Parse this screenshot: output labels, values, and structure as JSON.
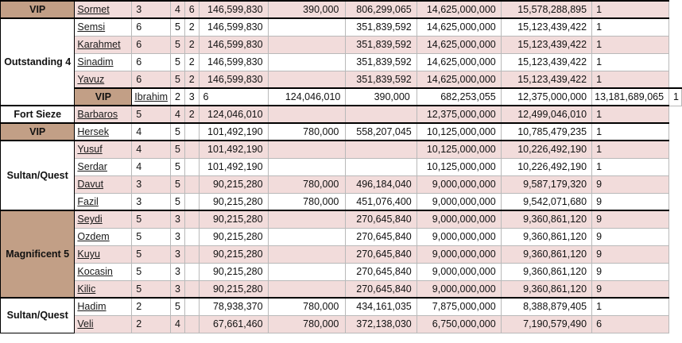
{
  "sheet": {
    "rows": [
      {
        "group": "VIP",
        "name": "Sormet",
        "a": "3",
        "b": "4",
        "c": "6",
        "v1": "146,599,830",
        "v2": "390,000",
        "v3": "806,299,065",
        "v4": "14,625,000,000",
        "v5": "15,578,288,895",
        "v6": "1"
      },
      {
        "group": "",
        "name": "Semsi",
        "a": "6",
        "b": "5",
        "c": "2",
        "v1": "146,599,830",
        "v2": "",
        "v3": "351,839,592",
        "v4": "14,625,000,000",
        "v5": "15,123,439,422",
        "v6": "1"
      },
      {
        "group": "Outstanding 4",
        "name": "Karahmet",
        "a": "6",
        "b": "5",
        "c": "2",
        "v1": "146,599,830",
        "v2": "",
        "v3": "351,839,592",
        "v4": "14,625,000,000",
        "v5": "15,123,439,422",
        "v6": "1"
      },
      {
        "group": "",
        "name": "Sinadim",
        "a": "6",
        "b": "5",
        "c": "2",
        "v1": "146,599,830",
        "v2": "",
        "v3": "351,839,592",
        "v4": "14,625,000,000",
        "v5": "15,123,439,422",
        "v6": "1"
      },
      {
        "group": "",
        "name": "Yavuz",
        "a": "6",
        "b": "5",
        "c": "2",
        "v1": "146,599,830",
        "v2": "",
        "v3": "351,839,592",
        "v4": "14,625,000,000",
        "v5": "15,123,439,422",
        "v6": "1"
      },
      {
        "group": "VIP",
        "name": "Ibrahim",
        "a": "2",
        "b": "3",
        "c": "6",
        "v1": "124,046,010",
        "v2": "390,000",
        "v3": "682,253,055",
        "v4": "12,375,000,000",
        "v5": "13,181,689,065",
        "v6": "1"
      },
      {
        "group": "Fort Sieze",
        "name": "Barbaros",
        "a": "5",
        "b": "4",
        "c": "2",
        "v1": "124,046,010",
        "v2": "",
        "v3": "",
        "v4": "12,375,000,000",
        "v5": "12,499,046,010",
        "v6": "1"
      },
      {
        "group": "VIP",
        "name": "Hersek",
        "a": "4",
        "b": "5",
        "c": "",
        "v1": "101,492,190",
        "v2": "780,000",
        "v3": "558,207,045",
        "v4": "10,125,000,000",
        "v5": "10,785,479,235",
        "v6": "1"
      },
      {
        "group": "",
        "name": "Yusuf",
        "a": "4",
        "b": "5",
        "c": "",
        "v1": "101,492,190",
        "v2": "",
        "v3": "",
        "v4": "10,125,000,000",
        "v5": "10,226,492,190",
        "v6": "1"
      },
      {
        "group": "Sultan/Quest",
        "name": "Serdar",
        "a": "4",
        "b": "5",
        "c": "",
        "v1": "101,492,190",
        "v2": "",
        "v3": "",
        "v4": "10,125,000,000",
        "v5": "10,226,492,190",
        "v6": "1"
      },
      {
        "group": "",
        "name": "Davut",
        "a": "3",
        "b": "5",
        "c": "",
        "v1": "90,215,280",
        "v2": "780,000",
        "v3": "496,184,040",
        "v4": "9,000,000,000",
        "v5": "9,587,179,320",
        "v6": "9"
      },
      {
        "group": "",
        "name": "Fazil",
        "a": "3",
        "b": "5",
        "c": "",
        "v1": "90,215,280",
        "v2": "780,000",
        "v3": "451,076,400",
        "v4": "9,000,000,000",
        "v5": "9,542,071,680",
        "v6": "9"
      },
      {
        "group": "",
        "name": "Seydi",
        "a": "5",
        "b": "3",
        "c": "",
        "v1": "90,215,280",
        "v2": "",
        "v3": "270,645,840",
        "v4": "9,000,000,000",
        "v5": "9,360,861,120",
        "v6": "9"
      },
      {
        "group": "",
        "name": "Ozdem",
        "a": "5",
        "b": "3",
        "c": "",
        "v1": "90,215,280",
        "v2": "",
        "v3": "270,645,840",
        "v4": "9,000,000,000",
        "v5": "9,360,861,120",
        "v6": "9"
      },
      {
        "group": "Magnificent 5",
        "name": "Kuyu",
        "a": "5",
        "b": "3",
        "c": "",
        "v1": "90,215,280",
        "v2": "",
        "v3": "270,645,840",
        "v4": "9,000,000,000",
        "v5": "9,360,861,120",
        "v6": "9"
      },
      {
        "group": "",
        "name": "Kocasin",
        "a": "5",
        "b": "3",
        "c": "",
        "v1": "90,215,280",
        "v2": "",
        "v3": "270,645,840",
        "v4": "9,000,000,000",
        "v5": "9,360,861,120",
        "v6": "9"
      },
      {
        "group": "",
        "name": "Kilic",
        "a": "5",
        "b": "3",
        "c": "",
        "v1": "90,215,280",
        "v2": "",
        "v3": "270,645,840",
        "v4": "9,000,000,000",
        "v5": "9,360,861,120",
        "v6": "9"
      },
      {
        "group": "Sultan/Quest",
        "name": "Hadim",
        "a": "2",
        "b": "5",
        "c": "",
        "v1": "78,938,370",
        "v2": "780,000",
        "v3": "434,161,035",
        "v4": "7,875,000,000",
        "v5": "8,388,879,405",
        "v6": "1"
      },
      {
        "group": "",
        "name": "Veli",
        "a": "2",
        "b": "4",
        "c": "",
        "v1": "67,661,460",
        "v2": "780,000",
        "v3": "372,138,030",
        "v4": "6,750,000,000",
        "v5": "7,190,579,490",
        "v6": "6"
      }
    ]
  }
}
